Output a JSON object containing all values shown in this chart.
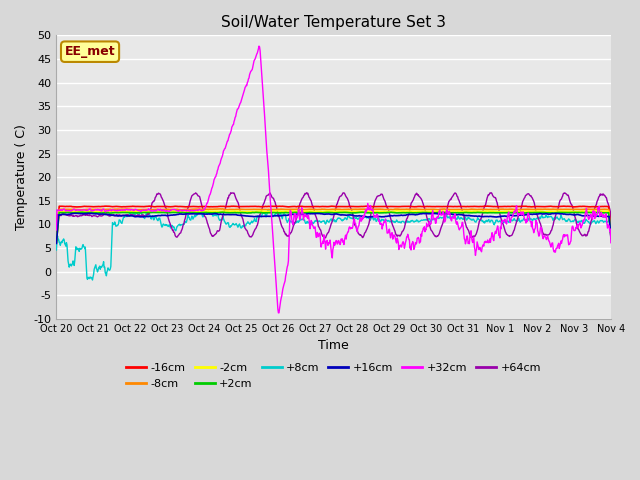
{
  "title": "Soil/Water Temperature Set 3",
  "xlabel": "Time",
  "ylabel": "Temperature ( C)",
  "ylim": [
    -10,
    50
  ],
  "yticks": [
    -10,
    -5,
    0,
    5,
    10,
    15,
    20,
    25,
    30,
    35,
    40,
    45,
    50
  ],
  "bg_color": "#e8e8e8",
  "plot_bg": "#e8e8e8",
  "annotation_text": "EE_met",
  "annotation_bg": "#ffff99",
  "annotation_border": "#bb8800",
  "series": [
    {
      "label": "-16cm",
      "color": "#ff0000"
    },
    {
      "label": "-8cm",
      "color": "#ff8800"
    },
    {
      "label": "-2cm",
      "color": "#ffff00"
    },
    {
      "label": "+2cm",
      "color": "#00cc00"
    },
    {
      "label": "+8cm",
      "color": "#00cccc"
    },
    {
      "label": "+16cm",
      "color": "#0000bb"
    },
    {
      "label": "+32cm",
      "color": "#ff00ff"
    },
    {
      "label": "+64cm",
      "color": "#9900aa"
    }
  ],
  "xtick_labels": [
    "Oct 20",
    "Oct 21",
    "Oct 22",
    "Oct 23",
    "Oct 24",
    "Oct 25",
    "Oct 26",
    "Oct 27",
    "Oct 28",
    "Oct 29",
    "Oct 30",
    "Oct 31",
    "Nov 1",
    "Nov 2",
    "Nov 3",
    "Nov 4"
  ]
}
